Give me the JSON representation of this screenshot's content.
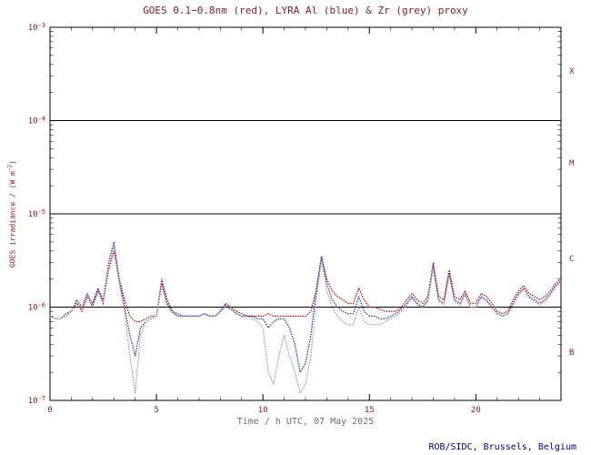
{
  "page": {
    "title": "GOES 0.1−0.8nm (red), LYRA Al (blue) & Zr (grey) proxy",
    "footer": "ROB/SIDC, Brussels, Belgium"
  },
  "colors": {
    "background": "#ffffff",
    "title_text": "#8b1a1a",
    "axis_text": "#8b1a1a",
    "xlabel_text": "#6e6e6e",
    "footer_text": "#00008b",
    "frame": "#000000",
    "goes_red": "#cc0000",
    "lyra_al_blue": "#2233bb",
    "lyra_zr_grey": "#9a9a9a"
  },
  "chart_data": {
    "type": "line",
    "title": "GOES 0.1−0.8nm (red), LYRA Al (blue) & Zr (grey) proxy",
    "xlabel": "Time / h UTC, 07 May 2025",
    "ylabel": "GOES irradiance / (W m−2)",
    "ylabel_parts": {
      "prefix": "GOES irradiance / (W m",
      "sup": "−2",
      "suffix": ")"
    },
    "x_axis": {
      "min": 0,
      "max": 24,
      "major_ticks": [
        0,
        5,
        10,
        15,
        20
      ],
      "minor_tick_step": 1,
      "label": "Time / h UTC, 07 May 2025"
    },
    "y_axis": {
      "scale": "log",
      "min": 1e-07,
      "max": 0.001,
      "tick_exponents": [
        -3,
        -4,
        -5,
        -6,
        -7
      ],
      "unit": "W m−2"
    },
    "flare_classes": [
      "X",
      "M",
      "C",
      "B"
    ],
    "threshold_lines_wm2": [
      0.0001,
      1e-05,
      1e-06
    ],
    "x_hours": {
      "start": 0,
      "step": 0.25,
      "count": 97
    },
    "series": [
      {
        "name": "GOES 0.1−0.8nm",
        "color_key": "goes_red",
        "style": "dotted",
        "values": [
          8e-07,
          7.5e-07,
          7.5e-07,
          8e-07,
          9e-07,
          1.1e-06,
          9e-07,
          1.3e-06,
          1e-06,
          1.5e-06,
          1.1e-06,
          2.5e-06,
          4e-06,
          2e-06,
          1.2e-06,
          8e-07,
          7e-07,
          7e-07,
          7.5e-07,
          8e-07,
          8e-07,
          2e-06,
          1.2e-06,
          9e-07,
          8.5e-07,
          8e-07,
          8e-07,
          8e-07,
          8e-07,
          8.5e-07,
          8e-07,
          8e-07,
          9e-07,
          1.1e-06,
          1e-06,
          9e-07,
          8.5e-07,
          8e-07,
          8e-07,
          8e-07,
          8e-07,
          8.5e-07,
          8e-07,
          8e-07,
          8e-07,
          8e-07,
          8e-07,
          8e-07,
          8e-07,
          9e-07,
          1.5e-06,
          3.5e-06,
          2e-06,
          1.5e-06,
          1.3e-06,
          1.2e-06,
          1.1e-06,
          1.1e-06,
          1.6e-06,
          1.2e-06,
          1e-06,
          1e-06,
          9.5e-07,
          9e-07,
          9e-07,
          9e-07,
          1e-06,
          1.2e-06,
          1.4e-06,
          1.2e-06,
          1.1e-06,
          1.3e-06,
          3e-06,
          1.3e-06,
          1.2e-06,
          2.5e-06,
          1.3e-06,
          1.2e-06,
          1.5e-06,
          1.1e-06,
          1.1e-06,
          1.4e-06,
          1.3e-06,
          1.1e-06,
          9e-07,
          8.5e-07,
          9e-07,
          1.2e-06,
          1.5e-06,
          1.7e-06,
          1.4e-06,
          1.3e-06,
          1.2e-06,
          1.3e-06,
          1.5e-06,
          1.8e-06,
          2e-06
        ]
      },
      {
        "name": "LYRA Al proxy",
        "color_key": "lyra_al_blue",
        "style": "dotted",
        "values": [
          8e-07,
          7.5e-07,
          7.5e-07,
          8.5e-07,
          9e-07,
          1.2e-06,
          1e-06,
          1.4e-06,
          1.1e-06,
          1.6e-06,
          1.2e-06,
          3e-06,
          5e-06,
          2e-06,
          1e-06,
          5e-07,
          3e-07,
          6e-07,
          7e-07,
          7.5e-07,
          8e-07,
          1.8e-06,
          1.1e-06,
          9e-07,
          8e-07,
          8e-07,
          8e-07,
          8e-07,
          8e-07,
          8.5e-07,
          8e-07,
          8e-07,
          9e-07,
          1.05e-06,
          9.5e-07,
          8.5e-07,
          8e-07,
          8e-07,
          8e-07,
          7.5e-07,
          7.5e-07,
          6e-07,
          7e-07,
          7.5e-07,
          7.5e-07,
          6e-07,
          4e-07,
          2e-07,
          2.5e-07,
          5e-07,
          1.5e-06,
          3.5e-06,
          1.8e-06,
          1.2e-06,
          1e-06,
          9e-07,
          8.5e-07,
          8.5e-07,
          1.3e-06,
          9e-07,
          8e-07,
          8e-07,
          7.5e-07,
          7.5e-07,
          8e-07,
          8.5e-07,
          9.5e-07,
          1.1e-06,
          1.3e-06,
          1.1e-06,
          1e-06,
          1.2e-06,
          2.8e-06,
          1.2e-06,
          1.1e-06,
          2.3e-06,
          1.2e-06,
          1.1e-06,
          1.4e-06,
          1e-06,
          1e-06,
          1.3e-06,
          1.2e-06,
          1e-06,
          8.5e-07,
          8e-07,
          8.5e-07,
          1.1e-06,
          1.4e-06,
          1.6e-06,
          1.3e-06,
          1.2e-06,
          1.1e-06,
          1.2e-06,
          1.4e-06,
          1.7e-06,
          1.9e-06
        ]
      },
      {
        "name": "LYRA Zr proxy",
        "color_key": "lyra_zr_grey",
        "style": "dotted",
        "values": [
          8e-07,
          7.5e-07,
          7.5e-07,
          8e-07,
          9e-07,
          1.15e-06,
          9.5e-07,
          1.35e-06,
          1.05e-06,
          1.55e-06,
          1.15e-06,
          2.8e-06,
          4.5e-06,
          1.8e-06,
          9e-07,
          3e-07,
          1.2e-07,
          5e-07,
          7e-07,
          7.5e-07,
          8e-07,
          1.7e-06,
          1.05e-06,
          8.5e-07,
          8e-07,
          8e-07,
          8e-07,
          8e-07,
          8e-07,
          8.5e-07,
          8e-07,
          8e-07,
          9e-07,
          1e-06,
          9.5e-07,
          8.5e-07,
          8e-07,
          8e-07,
          7.5e-07,
          7e-07,
          6e-07,
          2e-07,
          1.5e-07,
          3e-07,
          5e-07,
          3e-07,
          2e-07,
          1.2e-07,
          1.5e-07,
          3e-07,
          1.2e-06,
          3.2e-06,
          1.5e-06,
          1e-06,
          8e-07,
          7e-07,
          6.5e-07,
          6.5e-07,
          1e-06,
          7e-07,
          6.5e-07,
          6.5e-07,
          6.5e-07,
          7e-07,
          7.5e-07,
          8e-07,
          9e-07,
          1.05e-06,
          1.25e-06,
          1.05e-06,
          1e-06,
          1.15e-06,
          2.6e-06,
          1.15e-06,
          1.05e-06,
          2.2e-06,
          1.15e-06,
          1.05e-06,
          1.35e-06,
          1e-06,
          1e-06,
          1.25e-06,
          1.15e-06,
          1e-06,
          8.5e-07,
          8e-07,
          8.5e-07,
          1.05e-06,
          1.35e-06,
          1.55e-06,
          1.25e-06,
          1.15e-06,
          1.05e-06,
          1.15e-06,
          1.35e-06,
          1.65e-06,
          1.85e-06
        ]
      }
    ]
  }
}
